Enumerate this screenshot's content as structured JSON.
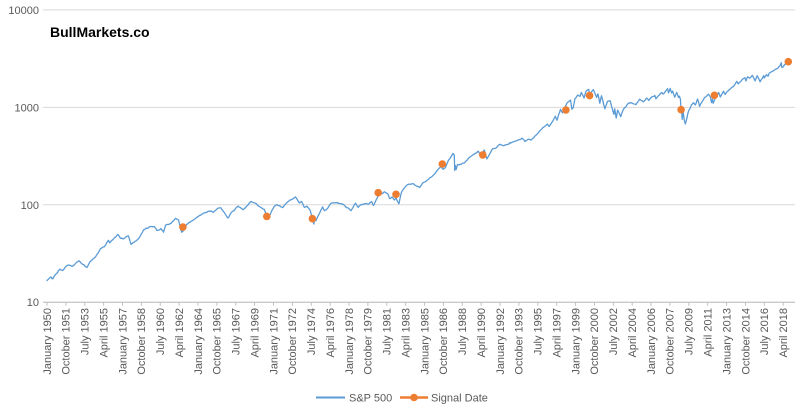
{
  "title": "BullMarkets.co",
  "colors": {
    "sp500_line": "#5B9BD5",
    "signal_marker": "#ED7D31",
    "gridline": "#D9D9D9",
    "axis_line": "#BFBFBF",
    "tick_label": "#595959",
    "title_text": "#000000",
    "background": "#FFFFFF"
  },
  "legend": {
    "position": "bottom-center"
  },
  "chart_data": {
    "type": "line",
    "title": "BullMarkets.co",
    "xlabel": "",
    "ylabel": "",
    "y_scale": "log",
    "ylim": [
      10,
      10000
    ],
    "y_tick_labels": [
      "10",
      "100",
      "1000",
      "10000"
    ],
    "grid": "horizontal",
    "legend_position": "bottom",
    "x_tick_interval_months": 21,
    "x_tick_labels": [
      "January 1950",
      "October 1951",
      "July 1953",
      "April 1955",
      "January 1957",
      "October 1958",
      "July 1960",
      "April 1962",
      "January 1964",
      "October 1965",
      "July 1967",
      "April 1969",
      "January 1971",
      "October 1972",
      "July 1974",
      "April 1976",
      "January 1978",
      "October 1979",
      "July 1981",
      "April 1983",
      "January 1985",
      "October 1986",
      "July 1988",
      "April 1990",
      "January 1992",
      "October 1993",
      "July 1995",
      "April 1997",
      "January 1999",
      "October 2000",
      "July 2002",
      "April 2004",
      "January 2006",
      "October 2007",
      "July 2009",
      "April 2011",
      "January 2013",
      "October 2014",
      "July 2016",
      "April 2018"
    ],
    "series": [
      {
        "name": "S&P 500",
        "type": "line",
        "color": "#5B9BD5",
        "points": [
          [
            1950.0,
            16.7
          ],
          [
            1950.33,
            18.1
          ],
          [
            1950.54,
            17.4
          ],
          [
            1950.9,
            19.8
          ],
          [
            1951.2,
            21.8
          ],
          [
            1951.45,
            21.1
          ],
          [
            1951.75,
            23.3
          ],
          [
            1952.0,
            24.1
          ],
          [
            1952.35,
            23.3
          ],
          [
            1952.95,
            26.6
          ],
          [
            1953.15,
            25.3
          ],
          [
            1953.7,
            22.7
          ],
          [
            1954.0,
            26.1
          ],
          [
            1954.5,
            29.2
          ],
          [
            1954.95,
            35.3
          ],
          [
            1955.3,
            37.0
          ],
          [
            1955.7,
            43.2
          ],
          [
            1955.8,
            40.8
          ],
          [
            1956.1,
            43.8
          ],
          [
            1956.58,
            49.6
          ],
          [
            1956.8,
            45.3
          ],
          [
            1957.1,
            44.7
          ],
          [
            1957.55,
            47.9
          ],
          [
            1957.8,
            39.2
          ],
          [
            1958.05,
            41.1
          ],
          [
            1958.5,
            45.0
          ],
          [
            1958.95,
            55.2
          ],
          [
            1959.6,
            59.9
          ],
          [
            1959.95,
            59.9
          ],
          [
            1960.2,
            54.4
          ],
          [
            1960.55,
            56.9
          ],
          [
            1960.8,
            52.3
          ],
          [
            1961.0,
            61.8
          ],
          [
            1961.5,
            64.6
          ],
          [
            1961.92,
            72.6
          ],
          [
            1962.2,
            69.6
          ],
          [
            1962.48,
            52.3
          ],
          [
            1962.75,
            56.3
          ],
          [
            1962.95,
            63.1
          ],
          [
            1963.5,
            69.1
          ],
          [
            1963.95,
            75.0
          ],
          [
            1964.5,
            81.7
          ],
          [
            1965.05,
            86.1
          ],
          [
            1965.45,
            84.1
          ],
          [
            1965.85,
            92.4
          ],
          [
            1966.1,
            93.3
          ],
          [
            1966.62,
            77.1
          ],
          [
            1966.78,
            73.2
          ],
          [
            1967.05,
            82.3
          ],
          [
            1967.72,
            96.7
          ],
          [
            1968.18,
            89.1
          ],
          [
            1968.6,
            98.7
          ],
          [
            1968.9,
            108.4
          ],
          [
            1969.35,
            103.5
          ],
          [
            1969.58,
            97.7
          ],
          [
            1969.95,
            92.1
          ],
          [
            1970.15,
            89.5
          ],
          [
            1970.45,
            72.7
          ],
          [
            1970.65,
            78.1
          ],
          [
            1971.05,
            95.9
          ],
          [
            1971.3,
            100.3
          ],
          [
            1971.85,
            93.5
          ],
          [
            1972.3,
            107.2
          ],
          [
            1972.95,
            118.1
          ],
          [
            1973.04,
            120.2
          ],
          [
            1973.4,
            104.3
          ],
          [
            1973.6,
            108.4
          ],
          [
            1973.85,
            94.0
          ],
          [
            1974.1,
            96.6
          ],
          [
            1974.4,
            87.3
          ],
          [
            1974.73,
            63.5
          ],
          [
            1974.83,
            73.9
          ],
          [
            1974.93,
            68.6
          ],
          [
            1975.3,
            83.4
          ],
          [
            1975.55,
            95.2
          ],
          [
            1975.72,
            86.9
          ],
          [
            1975.95,
            90.2
          ],
          [
            1976.3,
            102.8
          ],
          [
            1976.75,
            105.2
          ],
          [
            1977.05,
            103.8
          ],
          [
            1977.5,
            100.2
          ],
          [
            1978.17,
            87.0
          ],
          [
            1978.6,
            103.9
          ],
          [
            1978.85,
            94.1
          ],
          [
            1979.05,
            99.9
          ],
          [
            1979.6,
            103.0
          ],
          [
            1979.85,
            101.8
          ],
          [
            1980.1,
            107.9
          ],
          [
            1980.27,
            98.2
          ],
          [
            1980.55,
            114.2
          ],
          [
            1980.9,
            140.5
          ],
          [
            1981.05,
            129.6
          ],
          [
            1981.3,
            136.0
          ],
          [
            1981.6,
            129.1
          ],
          [
            1981.75,
            116.2
          ],
          [
            1982.0,
            120.4
          ],
          [
            1982.2,
            111.9
          ],
          [
            1982.35,
            116.8
          ],
          [
            1982.62,
            102.4
          ],
          [
            1982.85,
            133.7
          ],
          [
            1983.05,
            145.3
          ],
          [
            1983.5,
            162.4
          ],
          [
            1983.95,
            164.9
          ],
          [
            1984.2,
            157.1
          ],
          [
            1984.56,
            150.6
          ],
          [
            1984.8,
            166.1
          ],
          [
            1985.05,
            171.6
          ],
          [
            1985.5,
            189.5
          ],
          [
            1985.95,
            207.3
          ],
          [
            1986.2,
            226.9
          ],
          [
            1986.5,
            245.7
          ],
          [
            1986.73,
            231.3
          ],
          [
            1986.95,
            242.2
          ],
          [
            1987.2,
            284.2
          ],
          [
            1987.64,
            336.8
          ],
          [
            1987.76,
            321.8
          ],
          [
            1987.8,
            224.8
          ],
          [
            1987.86,
            251.8
          ],
          [
            1987.93,
            230.3
          ],
          [
            1988.05,
            257.1
          ],
          [
            1988.35,
            258.9
          ],
          [
            1988.75,
            271.9
          ],
          [
            1989.05,
            297.5
          ],
          [
            1989.4,
            320.5
          ],
          [
            1989.78,
            340.4
          ],
          [
            1990.0,
            353.4
          ],
          [
            1990.1,
            332.7
          ],
          [
            1990.42,
            342.9
          ],
          [
            1990.53,
            365.0
          ],
          [
            1990.78,
            295.5
          ],
          [
            1991.03,
            330.2
          ],
          [
            1991.3,
            375.4
          ],
          [
            1991.6,
            380.0
          ],
          [
            1991.95,
            417.1
          ],
          [
            1992.3,
            403.7
          ],
          [
            1992.75,
            418.5
          ],
          [
            1993.05,
            435.7
          ],
          [
            1993.7,
            461.8
          ],
          [
            1994.08,
            481.6
          ],
          [
            1994.3,
            445.8
          ],
          [
            1994.6,
            470.0
          ],
          [
            1994.88,
            461.5
          ],
          [
            1995.45,
            533.4
          ],
          [
            1995.95,
            615.9
          ],
          [
            1996.4,
            672.7
          ],
          [
            1996.55,
            635.3
          ],
          [
            1996.95,
            740.7
          ],
          [
            1997.12,
            811.0
          ],
          [
            1997.28,
            737.7
          ],
          [
            1997.6,
            954.3
          ],
          [
            1997.8,
            877.0
          ],
          [
            1997.95,
            970.4
          ],
          [
            1998.2,
            1101.8
          ],
          [
            1998.53,
            1186.8
          ],
          [
            1998.66,
            957.3
          ],
          [
            1998.77,
            984.4
          ],
          [
            1998.95,
            1229.2
          ],
          [
            1999.2,
            1335.2
          ],
          [
            1999.42,
            1301.8
          ],
          [
            1999.53,
            1418.8
          ],
          [
            1999.78,
            1247.4
          ],
          [
            1999.98,
            1469.3
          ],
          [
            2000.22,
            1527.5
          ],
          [
            2000.3,
            1356.6
          ],
          [
            2000.65,
            1520.8
          ],
          [
            2000.95,
            1264.7
          ],
          [
            2001.07,
            1373.7
          ],
          [
            2001.25,
            1103.3
          ],
          [
            2001.4,
            1312.8
          ],
          [
            2001.72,
            965.8
          ],
          [
            2001.95,
            1148.1
          ],
          [
            2002.2,
            1170.3
          ],
          [
            2002.55,
            847.8
          ],
          [
            2002.63,
            965.0
          ],
          [
            2002.77,
            776.8
          ],
          [
            2002.9,
            936.3
          ],
          [
            2003.18,
            800.7
          ],
          [
            2003.45,
            963.6
          ],
          [
            2003.95,
            1111.9
          ],
          [
            2004.25,
            1107.3
          ],
          [
            2004.6,
            1063.2
          ],
          [
            2004.95,
            1213.5
          ],
          [
            2005.3,
            1137.5
          ],
          [
            2005.6,
            1245.0
          ],
          [
            2005.8,
            1176.8
          ],
          [
            2005.95,
            1248.3
          ],
          [
            2006.35,
            1325.8
          ],
          [
            2006.45,
            1223.7
          ],
          [
            2006.95,
            1418.3
          ],
          [
            2007.17,
            1374.1
          ],
          [
            2007.54,
            1553.1
          ],
          [
            2007.62,
            1406.7
          ],
          [
            2007.77,
            1565.2
          ],
          [
            2007.9,
            1407.2
          ],
          [
            2008.0,
            1468.4
          ],
          [
            2008.19,
            1273.4
          ],
          [
            2008.38,
            1426.6
          ],
          [
            2008.55,
            1261.5
          ],
          [
            2008.63,
            1300.7
          ],
          [
            2008.72,
            1213.6
          ],
          [
            2008.79,
            899.2
          ],
          [
            2008.83,
            968.8
          ],
          [
            2008.89,
            752.4
          ],
          [
            2008.97,
            903.3
          ],
          [
            2009.08,
            735.1
          ],
          [
            2009.18,
            676.5
          ],
          [
            2009.48,
            919.3
          ],
          [
            2009.74,
            1057.1
          ],
          [
            2009.95,
            1115.1
          ],
          [
            2010.1,
            1056.7
          ],
          [
            2010.31,
            1217.3
          ],
          [
            2010.5,
            1022.6
          ],
          [
            2010.7,
            1125.9
          ],
          [
            2010.95,
            1257.6
          ],
          [
            2011.32,
            1363.6
          ],
          [
            2011.51,
            1270.2
          ],
          [
            2011.6,
            1119.5
          ],
          [
            2011.68,
            1218.9
          ],
          [
            2011.76,
            1099.2
          ],
          [
            2011.95,
            1257.6
          ],
          [
            2012.26,
            1419.0
          ],
          [
            2012.42,
            1278.0
          ],
          [
            2012.71,
            1465.8
          ],
          [
            2012.87,
            1353.3
          ],
          [
            2013.0,
            1426.2
          ],
          [
            2013.38,
            1563.2
          ],
          [
            2013.48,
            1606.3
          ],
          [
            2013.63,
            1632.9
          ],
          [
            2013.95,
            1848.4
          ],
          [
            2014.09,
            1741.9
          ],
          [
            2014.5,
            1960.2
          ],
          [
            2014.71,
            2011.4
          ],
          [
            2014.79,
            1862.5
          ],
          [
            2014.95,
            2058.9
          ],
          [
            2015.14,
            1992.7
          ],
          [
            2015.38,
            2130.8
          ],
          [
            2015.64,
            1867.6
          ],
          [
            2015.84,
            2109.8
          ],
          [
            2016.11,
            1829.1
          ],
          [
            2016.44,
            2119.1
          ],
          [
            2016.49,
            2000.5
          ],
          [
            2016.7,
            2168.3
          ],
          [
            2016.85,
            2085.2
          ],
          [
            2016.95,
            2238.8
          ],
          [
            2017.3,
            2362.7
          ],
          [
            2017.6,
            2470.3
          ],
          [
            2017.95,
            2673.6
          ],
          [
            2018.07,
            2872.9
          ],
          [
            2018.11,
            2581.0
          ],
          [
            2018.26,
            2605.0
          ],
          [
            2018.44,
            2779.0
          ],
          [
            2018.58,
            2816.3
          ],
          [
            2018.72,
            2930.8
          ],
          [
            2018.77,
            2914.0
          ]
        ]
      },
      {
        "name": "Signal Date",
        "type": "scatter",
        "color": "#ED7D31",
        "points": [
          [
            1962.6,
            59
          ],
          [
            1970.38,
            76
          ],
          [
            1974.6,
            72
          ],
          [
            1980.7,
            133
          ],
          [
            1982.35,
            128
          ],
          [
            1986.65,
            262
          ],
          [
            1990.4,
            325
          ],
          [
            1998.1,
            940
          ],
          [
            2000.3,
            1320
          ],
          [
            2008.78,
            945
          ],
          [
            2011.87,
            1330
          ],
          [
            2018.72,
            2940
          ]
        ]
      }
    ]
  }
}
